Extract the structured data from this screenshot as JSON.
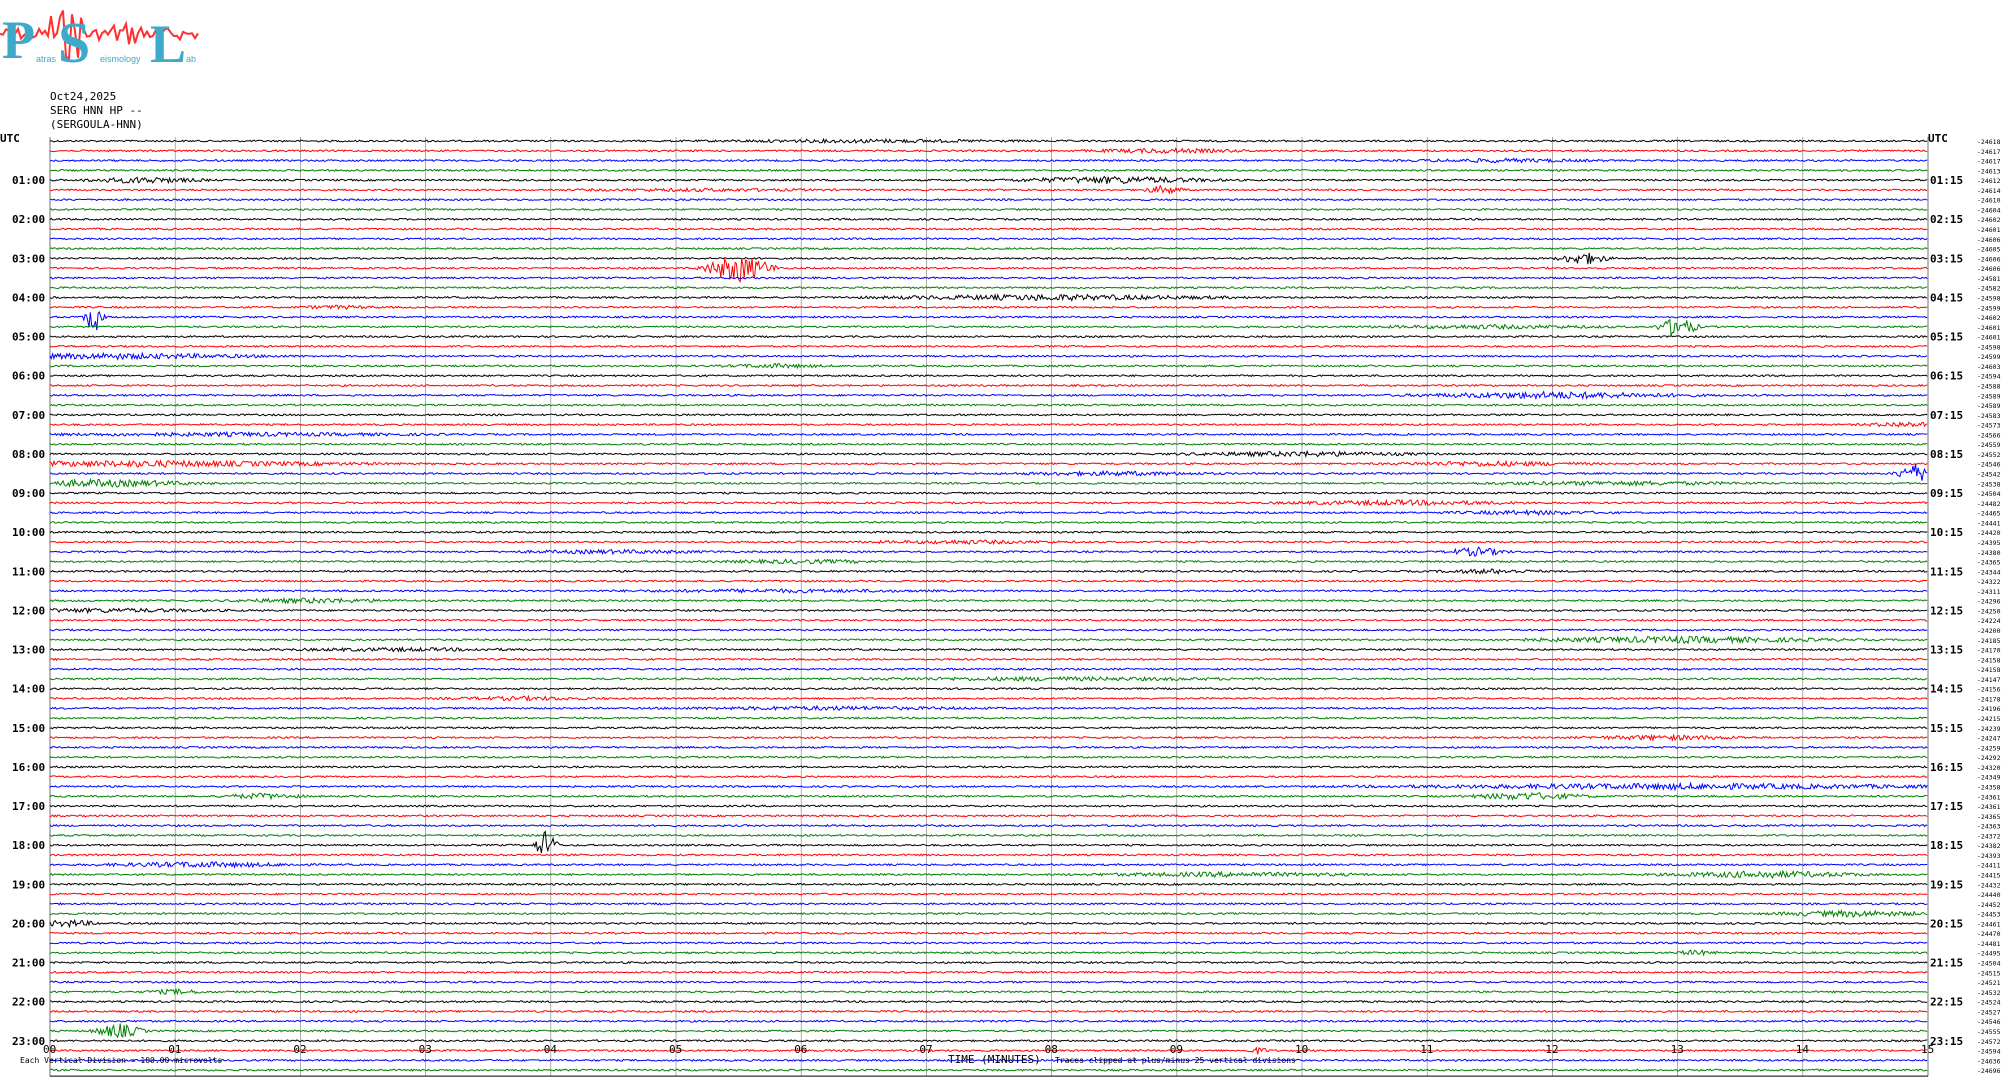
{
  "header": {
    "date": "Oct24,2025",
    "station": "SERG HNN HP --",
    "name": "(SERGOULA-HNN)"
  },
  "logo": {
    "letters": [
      "P",
      "S",
      "L"
    ],
    "words": [
      "atras",
      "eismology",
      "ab"
    ],
    "text_color": "#3fa9c9",
    "wave_color": "#ff3030"
  },
  "footer": {
    "scale_note": "Each Vertical Division =  100.00 microvolts",
    "xlabel": "TIME (MINUTES)",
    "clip_note": "Traces clipped at plus/minus 25 vertical divisions"
  },
  "chart_data": {
    "type": "line",
    "title": "",
    "xlabel": "TIME (MINUTES)",
    "xlim": [
      0,
      15
    ],
    "x_ticks": [
      "00",
      "01",
      "02",
      "03",
      "04",
      "05",
      "06",
      "07",
      "08",
      "09",
      "10",
      "11",
      "12",
      "13",
      "14",
      "15"
    ],
    "grid": true,
    "left_axis_label": "UTC",
    "right_axis_label": "UTC",
    "left_hour_labels": [
      "01:00",
      "02:00",
      "03:00",
      "04:00",
      "05:00",
      "06:00",
      "07:00",
      "08:00",
      "09:00",
      "10:00",
      "11:00",
      "12:00",
      "13:00",
      "14:00",
      "15:00",
      "16:00",
      "17:00",
      "18:00",
      "19:00",
      "20:00",
      "21:00",
      "22:00",
      "23:00"
    ],
    "right_hour_labels": [
      "01:15",
      "02:15",
      "03:15",
      "04:15",
      "05:15",
      "06:15",
      "07:15",
      "08:15",
      "09:15",
      "10:15",
      "11:15",
      "12:15",
      "13:15",
      "14:15",
      "15:15",
      "16:15",
      "17:15",
      "18:15",
      "19:15",
      "20:15",
      "21:15",
      "22:15",
      "23:15"
    ],
    "trace_colors": [
      "#000000",
      "#ff0000",
      "#0000ff",
      "#008000"
    ],
    "traces_per_hour": 4,
    "minutes_per_trace": 15,
    "trace_offsets": [
      -24618,
      -24617,
      -24617,
      -24613,
      -24612,
      -24614,
      -24610,
      -24604,
      -24602,
      -24601,
      -24606,
      -24605,
      -24606,
      -24606,
      -24581,
      -24582,
      -24598,
      -24599,
      -24602,
      -24601,
      -24601,
      -24598,
      -24599,
      -24603,
      -24594,
      -24588,
      -24589,
      -24589,
      -24583,
      -24573,
      -24566,
      -24559,
      -24552,
      -24546,
      -24542,
      -24538,
      -24504,
      -24482,
      -24465,
      -24441,
      -24420,
      -24395,
      -24380,
      -24365,
      -24344,
      -24322,
      -24311,
      -24296,
      -24250,
      -24224,
      -24200,
      -24185,
      -24170,
      -24158,
      -24158,
      -24147,
      -24156,
      -24178,
      -24196,
      -24215,
      -24239,
      -24247,
      -24259,
      -24292,
      -24320,
      -24349,
      -24358,
      -24361,
      -24361,
      -24365,
      -24363,
      -24372,
      -24382,
      -24393,
      -24411,
      -24415,
      -24432,
      -24440,
      -24452,
      -24453,
      -24461,
      -24470,
      -24481,
      -24495,
      -24504,
      -24515,
      -24521,
      -24532,
      -24524,
      -24527,
      -24546,
      -24555,
      -24572,
      -24594,
      -24636,
      -24696
    ],
    "events": [
      {
        "trace": 0,
        "minute": 6.5,
        "amp": 1.2,
        "dur": 1.5
      },
      {
        "trace": 1,
        "minute": 8.9,
        "amp": 1.8,
        "dur": 0.8
      },
      {
        "trace": 2,
        "minute": 11.6,
        "amp": 1.4,
        "dur": 0.9
      },
      {
        "trace": 4,
        "minute": 0.75,
        "amp": 2.6,
        "dur": 0.6
      },
      {
        "trace": 4,
        "minute": 8.5,
        "amp": 3.2,
        "dur": 1.0
      },
      {
        "trace": 5,
        "minute": 8.9,
        "amp": 4.0,
        "dur": 0.2
      },
      {
        "trace": 5,
        "minute": 5.2,
        "amp": 1.0,
        "dur": 1.2
      },
      {
        "trace": 13,
        "minute": 5.5,
        "amp": 14.0,
        "dur": 0.35
      },
      {
        "trace": 12,
        "minute": 12.25,
        "amp": 6.0,
        "dur": 0.25
      },
      {
        "trace": 16,
        "minute": 8.0,
        "amp": 2.4,
        "dur": 1.8
      },
      {
        "trace": 17,
        "minute": 2.3,
        "amp": 1.4,
        "dur": 0.4
      },
      {
        "trace": 18,
        "minute": 0.35,
        "amp": 16.0,
        "dur": 0.1
      },
      {
        "trace": 19,
        "minute": 13.0,
        "amp": 10.0,
        "dur": 0.2
      },
      {
        "trace": 19,
        "minute": 11.5,
        "amp": 1.5,
        "dur": 1.2
      },
      {
        "trace": 22,
        "minute": 0.5,
        "amp": 2.4,
        "dur": 1.6
      },
      {
        "trace": 23,
        "minute": 5.8,
        "amp": 1.6,
        "dur": 0.5
      },
      {
        "trace": 26,
        "minute": 12.0,
        "amp": 3.0,
        "dur": 1.4
      },
      {
        "trace": 29,
        "minute": 14.8,
        "amp": 2.2,
        "dur": 0.4
      },
      {
        "trace": 30,
        "minute": 1.5,
        "amp": 1.4,
        "dur": 2.0
      },
      {
        "trace": 32,
        "minute": 10.0,
        "amp": 2.0,
        "dur": 1.2
      },
      {
        "trace": 33,
        "minute": 0.8,
        "amp": 2.6,
        "dur": 2.2
      },
      {
        "trace": 33,
        "minute": 11.5,
        "amp": 2.0,
        "dur": 1.0
      },
      {
        "trace": 34,
        "minute": 14.9,
        "amp": 9.0,
        "dur": 0.2
      },
      {
        "trace": 34,
        "minute": 8.5,
        "amp": 1.6,
        "dur": 1.0
      },
      {
        "trace": 35,
        "minute": 0.4,
        "amp": 3.2,
        "dur": 1.0
      },
      {
        "trace": 35,
        "minute": 12.5,
        "amp": 1.6,
        "dur": 1.4
      },
      {
        "trace": 37,
        "minute": 10.8,
        "amp": 2.0,
        "dur": 1.2
      },
      {
        "trace": 38,
        "minute": 11.8,
        "amp": 1.6,
        "dur": 0.8
      },
      {
        "trace": 41,
        "minute": 7.3,
        "amp": 1.4,
        "dur": 1.0
      },
      {
        "trace": 42,
        "minute": 11.4,
        "amp": 4.0,
        "dur": 0.3
      },
      {
        "trace": 42,
        "minute": 4.5,
        "amp": 1.4,
        "dur": 1.0
      },
      {
        "trace": 43,
        "minute": 6.0,
        "amp": 1.6,
        "dur": 0.8
      },
      {
        "trace": 44,
        "minute": 11.5,
        "amp": 1.8,
        "dur": 0.5
      },
      {
        "trace": 46,
        "minute": 5.8,
        "amp": 1.2,
        "dur": 1.5
      },
      {
        "trace": 47,
        "minute": 2.1,
        "amp": 2.0,
        "dur": 0.8
      },
      {
        "trace": 48,
        "minute": 0.4,
        "amp": 1.6,
        "dur": 1.2
      },
      {
        "trace": 51,
        "minute": 13.0,
        "amp": 2.8,
        "dur": 1.6
      },
      {
        "trace": 52,
        "minute": 2.8,
        "amp": 1.2,
        "dur": 1.2
      },
      {
        "trace": 55,
        "minute": 8.0,
        "amp": 1.4,
        "dur": 2.0
      },
      {
        "trace": 57,
        "minute": 3.8,
        "amp": 1.4,
        "dur": 0.8
      },
      {
        "trace": 58,
        "minute": 6.2,
        "amp": 1.4,
        "dur": 1.5
      },
      {
        "trace": 61,
        "minute": 12.9,
        "amp": 2.0,
        "dur": 0.8
      },
      {
        "trace": 67,
        "minute": 1.7,
        "amp": 2.4,
        "dur": 0.4
      },
      {
        "trace": 67,
        "minute": 11.8,
        "amp": 3.2,
        "dur": 0.6
      },
      {
        "trace": 66,
        "minute": 13.0,
        "amp": 2.4,
        "dur": 3.0
      },
      {
        "trace": 72,
        "minute": 3.96,
        "amp": 14.0,
        "dur": 0.12
      },
      {
        "trace": 74,
        "minute": 1.2,
        "amp": 2.2,
        "dur": 1.0
      },
      {
        "trace": 75,
        "minute": 9.4,
        "amp": 1.8,
        "dur": 1.4
      },
      {
        "trace": 75,
        "minute": 13.7,
        "amp": 3.0,
        "dur": 1.0
      },
      {
        "trace": 79,
        "minute": 14.4,
        "amp": 2.6,
        "dur": 0.8
      },
      {
        "trace": 80,
        "minute": 0.15,
        "amp": 3.0,
        "dur": 0.3
      },
      {
        "trace": 83,
        "minute": 13.15,
        "amp": 2.2,
        "dur": 0.2
      },
      {
        "trace": 87,
        "minute": 1.0,
        "amp": 2.0,
        "dur": 0.3
      },
      {
        "trace": 91,
        "minute": 0.55,
        "amp": 7.0,
        "dur": 0.25
      },
      {
        "trace": 93,
        "minute": 9.65,
        "amp": 3.0,
        "dur": 0.1
      }
    ]
  }
}
